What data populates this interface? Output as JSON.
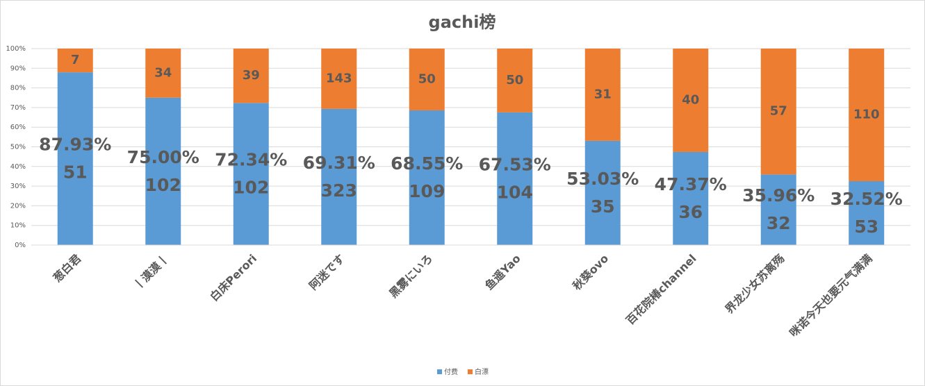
{
  "chart_data": {
    "type": "bar",
    "stacking": "percent",
    "title": "gachi榜",
    "categories": [
      "葱白君",
      "丨漠漠丨",
      "白床Perori",
      "阿迷です",
      "黑雾にいろ",
      "鱼遥Yao",
      "秋葵ovo",
      "百花院椿channel",
      "界龙少女苏离殇",
      "咪诺今天也要元气满满"
    ],
    "series": [
      {
        "name": "付费",
        "color": "#5b9bd5",
        "values": [
          51,
          102,
          102,
          323,
          109,
          104,
          35,
          36,
          32,
          53
        ],
        "share_labels": [
          "87.93%",
          "75.00%",
          "72.34%",
          "69.31%",
          "68.55%",
          "67.53%",
          "53.03%",
          "47.37%",
          "35.96%",
          "32.52%"
        ]
      },
      {
        "name": "白漂",
        "color": "#ed7d31",
        "values": [
          7,
          34,
          39,
          143,
          50,
          50,
          31,
          40,
          57,
          110
        ]
      }
    ],
    "ylim": [
      0,
      100
    ],
    "yticks": [
      {
        "value": 0,
        "label": "0%"
      },
      {
        "value": 10,
        "label": "10%"
      },
      {
        "value": 20,
        "label": "20%"
      },
      {
        "value": 30,
        "label": "30%"
      },
      {
        "value": 40,
        "label": "40%"
      },
      {
        "value": 50,
        "label": "50%"
      },
      {
        "value": 60,
        "label": "60%"
      },
      {
        "value": 70,
        "label": "70%"
      },
      {
        "value": 80,
        "label": "80%"
      },
      {
        "value": 90,
        "label": "90%"
      },
      {
        "value": 100,
        "label": "100%"
      }
    ],
    "grid": true,
    "legend": "bottom"
  }
}
